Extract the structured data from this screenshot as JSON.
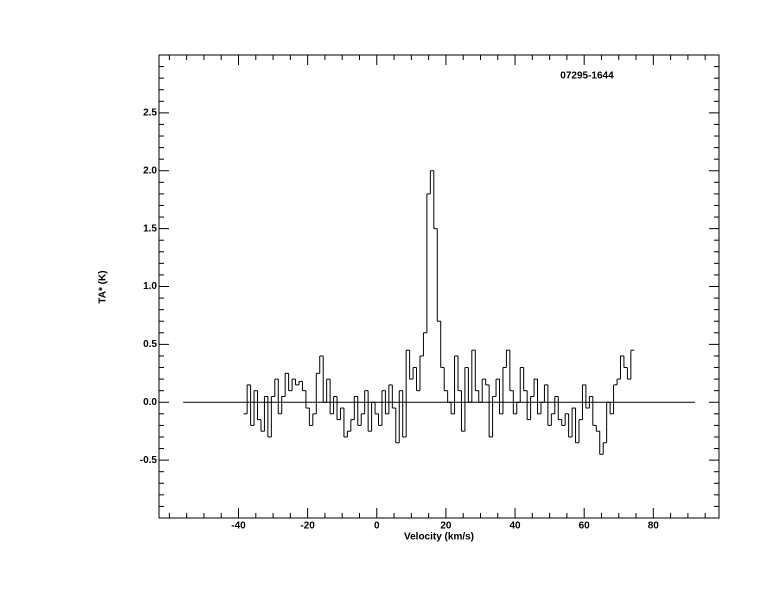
{
  "chart_data": {
    "type": "step",
    "title": "07295-1644",
    "x_label": "Velocity (km/s)",
    "y_label": "TA* (K)",
    "color": "#000000",
    "xlim": [
      -63,
      99
    ],
    "ylim": [
      -1,
      3
    ],
    "xticks": [
      -40,
      -20,
      0,
      20,
      40,
      60,
      80
    ],
    "yticks": [
      -0.5,
      {
        "value": 0,
        "label": "0.0"
      },
      0.5,
      {
        "value": 1,
        "label": "1.0"
      },
      1.5,
      {
        "value": 2,
        "label": "2.0"
      },
      2.5
    ],
    "minor_xticks": [
      -60,
      -55,
      -50,
      -45,
      -35,
      -30,
      -25,
      -15,
      -10,
      -5,
      5,
      10,
      15,
      25,
      30,
      35,
      45,
      50,
      55,
      65,
      70,
      75,
      85,
      90,
      95
    ],
    "minor_yticks": [
      -0.9,
      -0.8,
      -0.7,
      -0.6,
      -0.4,
      -0.3,
      -0.2,
      -0.1,
      0.1,
      0.2,
      0.3,
      0.4,
      0.6,
      0.7,
      0.8,
      0.9,
      1.1,
      1.2,
      1.3,
      1.4,
      1.6,
      1.7,
      1.8,
      1.9,
      2.1,
      2.2,
      2.3,
      2.4,
      2.6,
      2.7,
      2.8,
      2.9
    ],
    "baseline": {
      "x": [
        -56,
        92
      ],
      "y": 0
    },
    "x": [
      -38,
      -37,
      -36,
      -35,
      -34,
      -33,
      -32,
      -31,
      -30,
      -29,
      -28,
      -27,
      -26,
      -25,
      -24,
      -23,
      -22,
      -21,
      -20,
      -19,
      -18,
      -17,
      -16,
      -15,
      -14,
      -13,
      -12,
      -11,
      -10,
      -9,
      -8,
      -7,
      -6,
      -5,
      -4,
      -3,
      -2,
      -1,
      0,
      1,
      2,
      3,
      4,
      5,
      6,
      7,
      8,
      9,
      10,
      11,
      12,
      13,
      14,
      15,
      16,
      17,
      18,
      19,
      20,
      21,
      22,
      23,
      24,
      25,
      26,
      27,
      28,
      29,
      30,
      31,
      32,
      33,
      34,
      35,
      36,
      37,
      38,
      39,
      40,
      41,
      42,
      43,
      44,
      45,
      46,
      47,
      48,
      49,
      50,
      51,
      52,
      53,
      54,
      55,
      56,
      57,
      58,
      59,
      60,
      61,
      62,
      63,
      64,
      65,
      66,
      67,
      68,
      69,
      70,
      71,
      72,
      73,
      74
    ],
    "values": [
      -0.1,
      0.15,
      -0.2,
      0.1,
      -0.15,
      -0.25,
      0.05,
      -0.3,
      0.05,
      0.2,
      -0.1,
      0.05,
      0.25,
      0.1,
      0.2,
      0.15,
      0.18,
      0.1,
      -0.05,
      -0.2,
      -0.1,
      0.25,
      0.4,
      0.0,
      0.2,
      -0.1,
      0.05,
      -0.15,
      -0.05,
      -0.3,
      -0.25,
      -0.15,
      0.05,
      -0.2,
      -0.1,
      0.1,
      -0.25,
      0.0,
      -0.1,
      -0.2,
      0.1,
      -0.1,
      0.15,
      -0.05,
      -0.35,
      0.1,
      -0.3,
      0.45,
      0.2,
      0.3,
      0.1,
      0.4,
      0.6,
      1.8,
      2.0,
      1.5,
      0.7,
      0.3,
      0.1,
      0.0,
      -0.1,
      0.4,
      0.1,
      -0.25,
      0.3,
      0.0,
      0.45,
      0.1,
      0.0,
      0.2,
      0.15,
      -0.3,
      0.05,
      0.2,
      -0.1,
      0.3,
      0.45,
      0.1,
      -0.1,
      0.0,
      0.3,
      0.1,
      -0.15,
      0.05,
      0.2,
      -0.1,
      0.0,
      0.15,
      -0.2,
      -0.1,
      0.05,
      -0.15,
      -0.2,
      -0.1,
      -0.3,
      -0.05,
      -0.35,
      -0.15,
      0.15,
      -0.05,
      0.05,
      -0.2,
      -0.25,
      -0.45,
      -0.35,
      0.0,
      -0.1,
      0.15,
      0.2,
      0.4,
      0.3,
      0.2,
      0.45
    ]
  }
}
